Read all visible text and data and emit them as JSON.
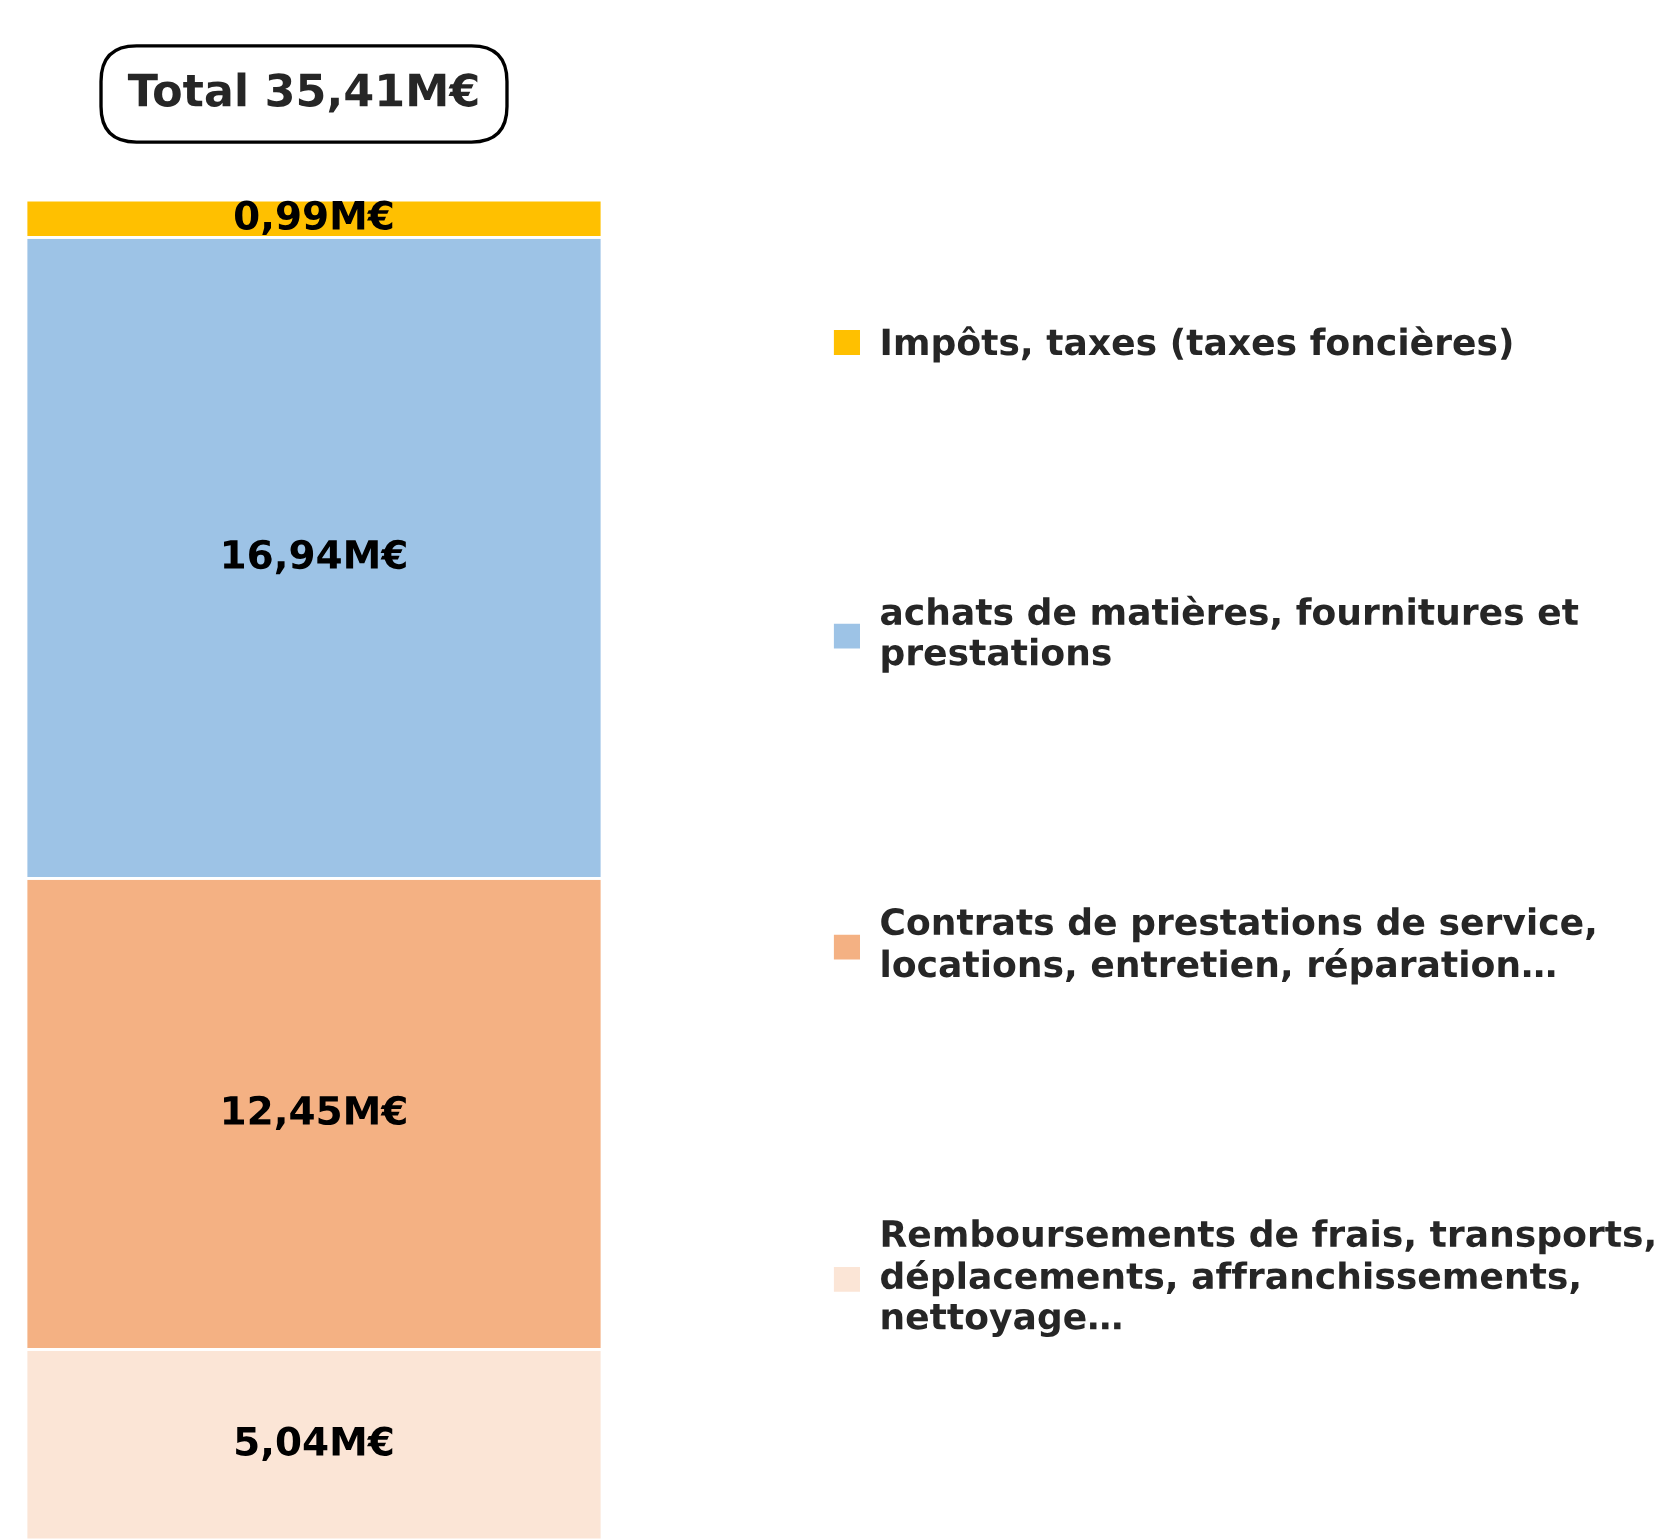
{
  "chart_data": {
    "type": "bar",
    "stacked": true,
    "categories": [
      null
    ],
    "series": [
      {
        "name": "Remboursements de frais, transports,\ndéplacements, affranchissements,\nnettoyage…",
        "color": "#fbe5d6",
        "values": [
          5.04
        ],
        "value_labels": [
          "5,04M€"
        ]
      },
      {
        "name": "Contrats de prestations de service,\nlocations, entretien, réparation…",
        "color": "#f4b183",
        "values": [
          12.45
        ],
        "value_labels": [
          "12,45M€"
        ]
      },
      {
        "name": "achats de matières, fournitures et\nprestations",
        "color": "#9dc3e6",
        "values": [
          16.94
        ],
        "value_labels": [
          "16,94M€"
        ]
      },
      {
        "name": "Impôts, taxes (taxes foncières)",
        "color": "#ffc000",
        "values": [
          0.99
        ],
        "value_labels": [
          "0,99M€"
        ]
      }
    ],
    "totals": [
      "Total 35,41M€"
    ],
    "legend": "right"
  }
}
